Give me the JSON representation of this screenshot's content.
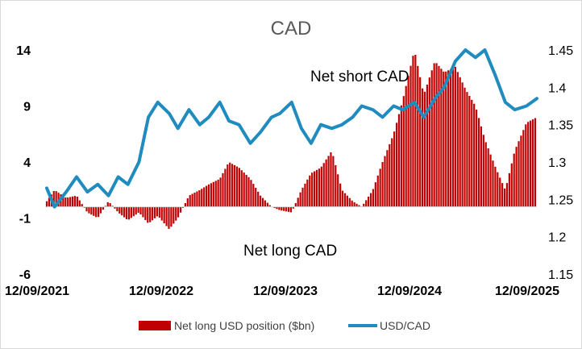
{
  "chart_data": {
    "type": "bar+line",
    "title": "CAD",
    "colors": {
      "bars": "#c00000",
      "line": "#1f8bbf"
    },
    "y_left": {
      "ticks": [
        14,
        9,
        4,
        -1,
        -6
      ],
      "ylim": [
        -6,
        14
      ]
    },
    "y_right": {
      "ticks": [
        1.45,
        1.4,
        1.35,
        1.3,
        1.25,
        1.2,
        1.15
      ],
      "ylim": [
        1.15,
        1.45
      ]
    },
    "x_ticks": [
      "12/09/2021",
      "12/09/2022",
      "12/09/2023",
      "12/09/2024",
      "12/09/2025"
    ],
    "x_range": [
      "2021-09-12",
      "2025-09-12"
    ],
    "annotations": {
      "upper": "Net short CAD",
      "lower": "Net long CAD"
    },
    "legend": {
      "bars": "Net long USD position ($bn)",
      "line": "USD/CAD"
    },
    "series": [
      {
        "name": "Net long USD position ($bn)",
        "kind": "bar",
        "x": [
          "2021-09-12",
          "2021-10-05",
          "2021-11-09",
          "2021-12-10",
          "2022-01-11",
          "2022-02-11",
          "2022-03-15",
          "2022-04-13",
          "2022-05-12",
          "2022-06-14",
          "2022-07-12",
          "2022-08-09",
          "2022-09-12",
          "2022-10-08",
          "2022-11-10",
          "2022-12-12",
          "2023-01-08",
          "2023-02-10",
          "2023-03-09",
          "2023-04-08",
          "2023-05-12",
          "2023-06-11",
          "2023-07-14",
          "2023-08-08",
          "2023-09-12",
          "2023-10-11",
          "2023-11-09",
          "2023-12-08",
          "2024-01-10",
          "2024-02-09",
          "2024-03-12",
          "2024-04-08",
          "2024-05-11",
          "2024-06-09",
          "2024-07-12",
          "2024-08-08",
          "2024-09-12",
          "2024-10-10",
          "2024-11-12",
          "2024-12-10",
          "2025-01-12",
          "2025-02-11",
          "2025-03-13",
          "2025-04-10",
          "2025-05-12",
          "2025-06-10",
          "2025-07-08",
          "2025-08-12",
          "2025-09-12"
        ],
        "values": [
          0.5,
          1.5,
          0.8,
          1.0,
          -0.5,
          -1.0,
          0.5,
          -0.5,
          -1.2,
          -0.5,
          -1.5,
          -0.8,
          -2.0,
          -1.0,
          1.0,
          1.5,
          2.0,
          2.5,
          4.0,
          3.5,
          2.5,
          1.0,
          0,
          -0.3,
          -0.5,
          1.5,
          3.0,
          3.5,
          5.0,
          1.5,
          0.5,
          0,
          1.5,
          4.0,
          6.5,
          9.5,
          14.0,
          10.0,
          13.0,
          12.0,
          12.5,
          10.5,
          9.0,
          6.0,
          3.5,
          1.5,
          5.0,
          7.5,
          8.0
        ]
      },
      {
        "name": "USD/CAD",
        "kind": "line",
        "x": [
          "2021-09-12",
          "2021-10-05",
          "2021-11-09",
          "2021-12-10",
          "2022-01-11",
          "2022-02-11",
          "2022-03-15",
          "2022-04-13",
          "2022-05-12",
          "2022-06-14",
          "2022-07-12",
          "2022-08-09",
          "2022-09-12",
          "2022-10-08",
          "2022-11-10",
          "2022-12-12",
          "2023-01-08",
          "2023-02-10",
          "2023-03-09",
          "2023-04-08",
          "2023-05-12",
          "2023-06-11",
          "2023-07-14",
          "2023-08-08",
          "2023-09-12",
          "2023-10-11",
          "2023-11-09",
          "2023-12-08",
          "2024-01-10",
          "2024-02-09",
          "2024-03-12",
          "2024-04-08",
          "2024-05-11",
          "2024-06-09",
          "2024-07-12",
          "2024-08-08",
          "2024-09-12",
          "2024-10-10",
          "2024-11-12",
          "2024-12-10",
          "2025-01-12",
          "2025-02-11",
          "2025-03-13",
          "2025-04-10",
          "2025-05-12",
          "2025-06-10",
          "2025-07-08",
          "2025-08-12",
          "2025-09-12"
        ],
        "values": [
          1.265,
          1.24,
          1.26,
          1.28,
          1.26,
          1.27,
          1.255,
          1.28,
          1.27,
          1.3,
          1.36,
          1.38,
          1.365,
          1.345,
          1.37,
          1.35,
          1.36,
          1.38,
          1.355,
          1.35,
          1.325,
          1.34,
          1.36,
          1.365,
          1.38,
          1.345,
          1.325,
          1.35,
          1.345,
          1.35,
          1.36,
          1.375,
          1.37,
          1.36,
          1.375,
          1.37,
          1.38,
          1.36,
          1.385,
          1.4,
          1.435,
          1.45,
          1.44,
          1.45,
          1.415,
          1.38,
          1.37,
          1.375,
          1.385
        ]
      }
    ]
  }
}
